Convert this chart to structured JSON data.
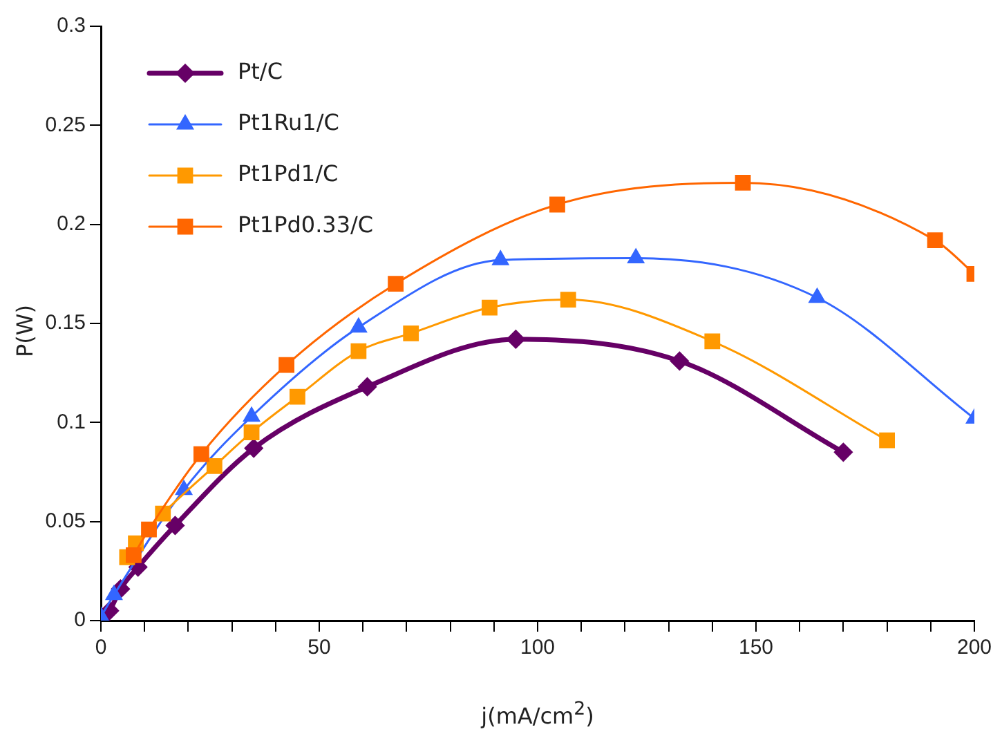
{
  "chart_data": {
    "type": "line",
    "xlabel": "j(mA/cm$^{2}$)",
    "ylabel": "P(W)",
    "xlim": [
      0,
      200
    ],
    "ylim": [
      0,
      0.3
    ],
    "xticks": [
      0,
      {
        "value": 10,
        "label": null
      },
      {
        "value": 20,
        "label": null
      },
      {
        "value": 30,
        "label": null
      },
      {
        "value": 40,
        "label": null
      },
      50,
      {
        "value": 60,
        "label": null
      },
      {
        "value": 70,
        "label": null
      },
      {
        "value": 80,
        "label": null
      },
      {
        "value": 90,
        "label": null
      },
      100,
      {
        "value": 110,
        "label": null
      },
      {
        "value": 120,
        "label": null
      },
      {
        "value": 130,
        "label": null
      },
      {
        "value": 140,
        "label": null
      },
      150,
      {
        "value": 160,
        "label": null
      },
      {
        "value": 170,
        "label": null
      },
      {
        "value": 180,
        "label": null
      },
      {
        "value": 190,
        "label": null
      },
      200
    ],
    "yticks": [
      0,
      0.05,
      0.1,
      0.15,
      0.2,
      0.25,
      0.3
    ],
    "grid": false,
    "legend": "top left",
    "series": [
      {
        "name": "Pt/C",
        "color": "#660066",
        "marker": "diamond",
        "x": [
          0,
          2,
          4.5,
          8.5,
          17,
          35,
          61,
          95,
          132.5,
          170
        ],
        "values": [
          0,
          0.005,
          0.016,
          0.027,
          0.048,
          0.087,
          0.118,
          0.142,
          0.131,
          0.085
        ]
      },
      {
        "name": "Pt1Ru1/C",
        "color": "#3366ff",
        "marker": "triangle",
        "x": [
          0,
          3,
          19,
          34.5,
          59,
          91.5,
          122.5,
          164,
          200
        ],
        "values": [
          0.002,
          0.013,
          0.066,
          0.103,
          0.148,
          0.182,
          0.183,
          0.163,
          0.102
        ]
      },
      {
        "name": "Pt1Pd1/C",
        "color": "#ff9900",
        "marker": "square",
        "x": [
          6,
          8,
          14.2,
          26,
          34.5,
          45,
          59,
          71,
          89,
          107,
          140,
          180
        ],
        "values": [
          0.032,
          0.039,
          0.054,
          0.078,
          0.095,
          0.113,
          0.136,
          0.145,
          0.158,
          0.162,
          0.141,
          0.091
        ]
      },
      {
        "name": "Pt1Pd0.33/C",
        "color": "#ff6600",
        "marker": "square",
        "x": [
          7.5,
          11,
          23,
          42.5,
          67.5,
          104.5,
          147,
          191,
          200
        ],
        "values": [
          0.033,
          0.046,
          0.084,
          0.129,
          0.17,
          0.21,
          0.221,
          0.192,
          0.175
        ]
      }
    ]
  }
}
